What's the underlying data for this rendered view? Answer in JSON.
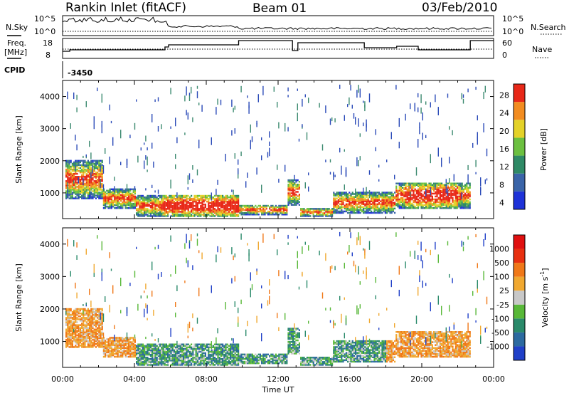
{
  "header": {
    "title": "Rankin Inlet (fitACF)",
    "beam": "Beam 01",
    "date": "03/Feb/2010"
  },
  "status_panels": {
    "nsky_label": "N.Sky",
    "nsearch_label": "N.Search",
    "freq_label": "Freq.",
    "freq_unit": "[MHz]",
    "nave_label": "Nave",
    "cpid_label": "CPID",
    "cpid_value": "-3450",
    "nsky_ticks": [
      "10^5",
      "10^0"
    ],
    "nsearch_ticks": [
      "10^5",
      "10^0"
    ],
    "freq_ticks": [
      "18",
      "8"
    ],
    "nave_ticks": [
      "60",
      "0"
    ]
  },
  "chart_data": [
    {
      "type": "heatmap",
      "name": "power",
      "ylabel": "Slant Range [km]",
      "xlabel": "",
      "ylim": [
        200,
        4500
      ],
      "yticks": [
        "1000",
        "2000",
        "3000",
        "4000"
      ],
      "x_tick_labels": [
        "00:00",
        "04:00",
        "08:00",
        "12:00",
        "16:00",
        "20:00",
        "00:00"
      ],
      "colorbar": {
        "label": "Power [dB]",
        "tick_labels": [
          "4",
          "8",
          "12",
          "16",
          "20",
          "24",
          "28"
        ],
        "colors": [
          "#1e32d8",
          "#3a64a8",
          "#2f8a66",
          "#6cc040",
          "#e4d228",
          "#f28c20",
          "#e82818"
        ]
      },
      "description_levels": [
        0,
        5,
        10,
        15,
        20,
        25,
        30
      ]
    },
    {
      "type": "heatmap",
      "name": "velocity",
      "ylabel": "Slant Range [km]",
      "xlabel": "Time UT",
      "ylim": [
        200,
        4500
      ],
      "yticks": [
        "1000",
        "2000",
        "3000",
        "4000"
      ],
      "x_tick_labels": [
        "00:00",
        "04:00",
        "08:00",
        "12:00",
        "16:00",
        "20:00",
        "00:00"
      ],
      "colorbar": {
        "label": "Velocity [m s",
        "label_sup": "-1",
        "label_end": "]",
        "tick_labels": [
          "1000",
          "500",
          "100",
          "25",
          "-25",
          "-100",
          "-500",
          "-1000"
        ],
        "colors": [
          "#2040c8",
          "#2c6aa0",
          "#2a8a6a",
          "#58b838",
          "#c8c8c8",
          "#f0a830",
          "#f07818",
          "#e83010",
          "#e01010"
        ]
      }
    }
  ]
}
